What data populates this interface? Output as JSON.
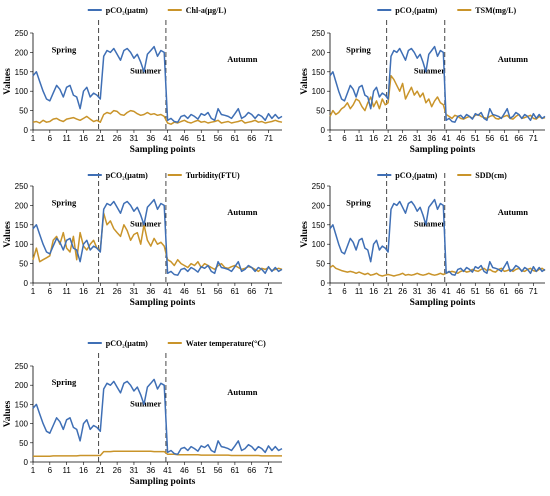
{
  "colors": {
    "pco2": "#3f6fb5",
    "other": "#c9942a"
  },
  "pco2_label": "pCO₂(μatm)",
  "panel_labels": {
    "ylabel": "Values",
    "xlabel": "Sampling points",
    "spring": "Spring",
    "summer": "Summer",
    "autumn": "Autumn"
  },
  "chart_data": [
    {
      "type": "line",
      "xlabel": "Sampling points",
      "ylabel": "Values",
      "x_ticks": [
        1,
        6,
        11,
        16,
        21,
        26,
        31,
        36,
        41,
        46,
        51,
        56,
        61,
        66,
        71
      ],
      "ylim": [
        0,
        250
      ],
      "y_ticks": [
        0,
        50,
        100,
        150,
        200,
        250
      ],
      "season_dividers": [
        20,
        40
      ],
      "season_labels": [
        "Spring",
        "Summer",
        "Autumn"
      ],
      "series": [
        {
          "name": "pCO₂(μatm)",
          "values": [
            140,
            150,
            125,
            100,
            80,
            75,
            95,
            115,
            105,
            85,
            110,
            115,
            90,
            85,
            55,
            100,
            110,
            85,
            95,
            90,
            80,
            190,
            205,
            200,
            210,
            195,
            180,
            205,
            210,
            200,
            185,
            195,
            175,
            150,
            195,
            205,
            215,
            190,
            205,
            200,
            25,
            30,
            22,
            20,
            35,
            38,
            30,
            40,
            35,
            28,
            42,
            38,
            45,
            30,
            25,
            55,
            40,
            38,
            35,
            30,
            42,
            55,
            30,
            35,
            45,
            40,
            30,
            40,
            35,
            25,
            42,
            30,
            40,
            30,
            35
          ]
        },
        {
          "name": "Chl-a(μg/L)",
          "values": [
            20,
            22,
            18,
            25,
            20,
            22,
            28,
            30,
            25,
            22,
            28,
            30,
            32,
            28,
            25,
            30,
            35,
            28,
            22,
            25,
            20,
            40,
            45,
            42,
            50,
            48,
            40,
            38,
            45,
            50,
            48,
            42,
            38,
            40,
            45,
            40,
            42,
            38,
            40,
            35,
            18,
            15,
            20,
            18,
            22,
            25,
            20,
            18,
            22,
            25,
            20,
            22,
            18,
            20,
            22,
            25,
            18,
            20,
            22,
            18,
            20,
            22,
            25,
            18,
            20,
            22,
            25,
            20,
            22,
            18,
            20,
            22,
            25,
            22,
            20
          ]
        }
      ]
    },
    {
      "type": "line",
      "xlabel": "Sampling points",
      "ylabel": "Values",
      "x_ticks": [
        1,
        6,
        11,
        16,
        21,
        26,
        31,
        36,
        41,
        46,
        51,
        56,
        61,
        66,
        71
      ],
      "ylim": [
        0,
        250
      ],
      "y_ticks": [
        0,
        50,
        100,
        150,
        200,
        250
      ],
      "season_dividers": [
        20,
        40
      ],
      "season_labels": [
        "Spring",
        "Summer",
        "Autumn"
      ],
      "series": [
        {
          "name": "pCO₂(μatm)",
          "values": [
            140,
            150,
            125,
            100,
            80,
            75,
            95,
            115,
            105,
            85,
            110,
            115,
            90,
            85,
            55,
            100,
            110,
            85,
            95,
            90,
            80,
            190,
            205,
            200,
            210,
            195,
            180,
            205,
            210,
            200,
            185,
            195,
            175,
            150,
            195,
            205,
            215,
            190,
            205,
            200,
            25,
            30,
            22,
            20,
            35,
            38,
            30,
            40,
            35,
            28,
            42,
            38,
            45,
            30,
            25,
            55,
            40,
            38,
            35,
            30,
            42,
            55,
            30,
            35,
            45,
            40,
            30,
            40,
            35,
            25,
            42,
            30,
            40,
            30,
            35
          ]
        },
        {
          "name": "TSM(mg/L)",
          "values": [
            35,
            50,
            40,
            45,
            55,
            60,
            70,
            55,
            65,
            80,
            75,
            60,
            50,
            70,
            85,
            60,
            75,
            55,
            80,
            65,
            70,
            140,
            130,
            115,
            100,
            120,
            80,
            95,
            110,
            90,
            100,
            85,
            95,
            70,
            80,
            60,
            75,
            85,
            70,
            65,
            40,
            35,
            30,
            38,
            35,
            30,
            28,
            32,
            35,
            30,
            38,
            40,
            35,
            32,
            30,
            35,
            38,
            30,
            28,
            32,
            35,
            38,
            30,
            28,
            35,
            40,
            30,
            32,
            35,
            38,
            30,
            28,
            35,
            30,
            32
          ]
        }
      ]
    },
    {
      "type": "line",
      "xlabel": "Sampling points",
      "ylabel": "Values",
      "x_ticks": [
        1,
        6,
        11,
        16,
        21,
        26,
        31,
        36,
        41,
        46,
        51,
        56,
        61,
        66,
        71
      ],
      "ylim": [
        0,
        250
      ],
      "y_ticks": [
        0,
        50,
        100,
        150,
        200,
        250
      ],
      "season_dividers": [
        20,
        40
      ],
      "season_labels": [
        "Spring",
        "Summer",
        "Autumn"
      ],
      "series": [
        {
          "name": "pCO₂(μatm)",
          "values": [
            140,
            150,
            125,
            100,
            80,
            75,
            95,
            115,
            105,
            85,
            110,
            115,
            90,
            85,
            55,
            100,
            110,
            85,
            95,
            90,
            80,
            190,
            205,
            200,
            210,
            195,
            180,
            205,
            210,
            200,
            185,
            195,
            175,
            150,
            195,
            205,
            215,
            190,
            205,
            200,
            25,
            30,
            22,
            20,
            35,
            38,
            30,
            40,
            35,
            28,
            42,
            38,
            45,
            30,
            25,
            55,
            40,
            38,
            35,
            30,
            42,
            55,
            30,
            35,
            45,
            40,
            30,
            40,
            35,
            25,
            42,
            30,
            40,
            30,
            35
          ]
        },
        {
          "name": "Turbidity(FTU)",
          "values": [
            60,
            90,
            55,
            60,
            65,
            70,
            110,
            120,
            100,
            130,
            90,
            80,
            120,
            60,
            130,
            95,
            85,
            100,
            110,
            90,
            85,
            180,
            150,
            160,
            140,
            130,
            120,
            150,
            135,
            110,
            125,
            130,
            100,
            150,
            110,
            95,
            115,
            100,
            105,
            95,
            60,
            55,
            45,
            60,
            50,
            45,
            40,
            50,
            45,
            55,
            40,
            50,
            45,
            40,
            35,
            45,
            50,
            40,
            38,
            42,
            45,
            40,
            35,
            38,
            42,
            40,
            35,
            30,
            38,
            35,
            40,
            32,
            35,
            38,
            35
          ]
        }
      ]
    },
    {
      "type": "line",
      "xlabel": "Sampling points",
      "ylabel": "Values",
      "x_ticks": [
        1,
        6,
        11,
        16,
        21,
        26,
        31,
        36,
        41,
        46,
        51,
        56,
        61,
        66,
        71
      ],
      "ylim": [
        0,
        250
      ],
      "y_ticks": [
        0,
        50,
        100,
        150,
        200,
        250
      ],
      "season_dividers": [
        20,
        40
      ],
      "season_labels": [
        "Spring",
        "Summer",
        "Autumn"
      ],
      "series": [
        {
          "name": "pCO₂(μatm)",
          "values": [
            140,
            150,
            125,
            100,
            80,
            75,
            95,
            115,
            105,
            85,
            110,
            115,
            90,
            85,
            55,
            100,
            110,
            85,
            95,
            90,
            80,
            190,
            205,
            200,
            210,
            195,
            180,
            205,
            210,
            200,
            185,
            195,
            175,
            150,
            195,
            205,
            215,
            190,
            205,
            200,
            25,
            30,
            22,
            20,
            35,
            38,
            30,
            40,
            35,
            28,
            42,
            38,
            45,
            30,
            25,
            55,
            40,
            38,
            35,
            30,
            42,
            55,
            30,
            35,
            45,
            40,
            30,
            40,
            35,
            25,
            42,
            30,
            40,
            30,
            35
          ]
        },
        {
          "name": "SDD(cm)",
          "values": [
            40,
            45,
            38,
            35,
            32,
            30,
            28,
            30,
            28,
            25,
            28,
            25,
            22,
            25,
            20,
            22,
            25,
            20,
            18,
            20,
            22,
            20,
            18,
            20,
            22,
            25,
            20,
            22,
            20,
            22,
            25,
            22,
            20,
            22,
            25,
            22,
            20,
            22,
            25,
            22,
            25,
            28,
            30,
            28,
            25,
            30,
            32,
            28,
            30,
            35,
            32,
            30,
            35,
            38,
            32,
            35,
            30,
            28,
            35,
            38,
            30,
            32,
            35,
            30,
            35,
            38,
            32,
            30,
            35,
            38,
            32,
            30,
            35,
            38,
            32
          ]
        }
      ]
    },
    {
      "type": "line",
      "xlabel": "Sampling points",
      "ylabel": "Values",
      "x_ticks": [
        1,
        6,
        11,
        16,
        21,
        26,
        31,
        36,
        41,
        46,
        51,
        56,
        61,
        66,
        71
      ],
      "ylim": [
        0,
        250
      ],
      "y_ticks": [
        0,
        50,
        100,
        150,
        200,
        250
      ],
      "season_dividers": [
        20,
        40
      ],
      "season_labels": [
        "Spring",
        "Summer",
        "Autumn"
      ],
      "series": [
        {
          "name": "pCO₂(μatm)",
          "values": [
            140,
            150,
            125,
            100,
            80,
            75,
            95,
            115,
            105,
            85,
            110,
            115,
            90,
            85,
            55,
            100,
            110,
            85,
            95,
            90,
            80,
            190,
            205,
            200,
            210,
            195,
            180,
            205,
            210,
            200,
            185,
            195,
            175,
            150,
            195,
            205,
            215,
            190,
            205,
            200,
            25,
            30,
            22,
            20,
            35,
            38,
            30,
            40,
            35,
            28,
            42,
            38,
            45,
            30,
            25,
            55,
            40,
            38,
            35,
            30,
            42,
            55,
            30,
            35,
            45,
            40,
            30,
            40,
            35,
            25,
            42,
            30,
            40,
            30,
            35
          ]
        },
        {
          "name": "Water temperature(°C)",
          "values": [
            15,
            15,
            15,
            15,
            15,
            15,
            16,
            16,
            16,
            16,
            16,
            16,
            16,
            16,
            17,
            17,
            17,
            17,
            17,
            17,
            17,
            27,
            27,
            27,
            28,
            28,
            28,
            28,
            28,
            28,
            28,
            28,
            28,
            28,
            28,
            28,
            27,
            27,
            27,
            27,
            20,
            20,
            20,
            19,
            19,
            19,
            19,
            19,
            19,
            19,
            18,
            18,
            18,
            18,
            18,
            18,
            18,
            18,
            18,
            17,
            17,
            17,
            17,
            17,
            17,
            17,
            17,
            17,
            16,
            16,
            16,
            16,
            16,
            16,
            16
          ]
        }
      ]
    }
  ]
}
